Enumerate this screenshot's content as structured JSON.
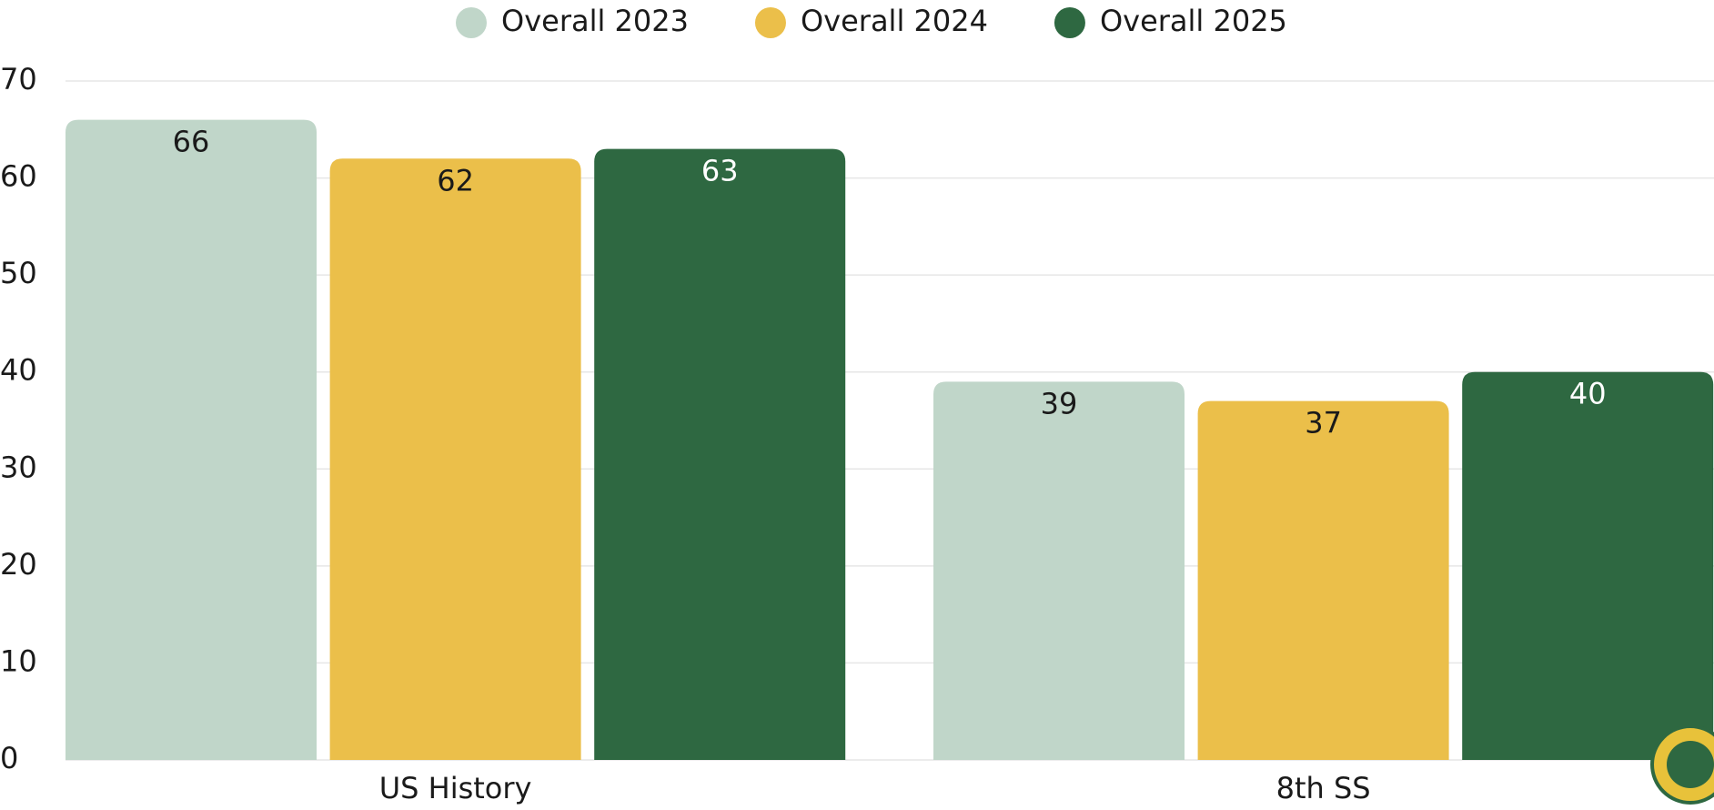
{
  "chart_data": {
    "type": "bar",
    "categories": [
      "US History",
      "8th SS"
    ],
    "series": [
      {
        "name": "Overall 2023",
        "color": "#c0d6c9",
        "values": [
          66,
          39
        ]
      },
      {
        "name": "Overall 2024",
        "color": "#ebbf4a",
        "values": [
          62,
          37
        ]
      },
      {
        "name": "Overall 2025",
        "color": "#2e6841",
        "values": [
          63,
          40
        ]
      }
    ],
    "ylim": [
      0,
      70
    ],
    "yticks": [
      0,
      10,
      20,
      30,
      40,
      50,
      60,
      70
    ],
    "grid": true,
    "legend": "top"
  }
}
